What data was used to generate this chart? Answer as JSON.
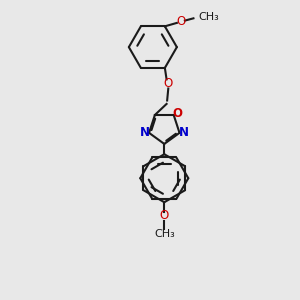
{
  "bg_color": "#e8e8e8",
  "bond_color": "#1a1a1a",
  "oxygen_color": "#cc0000",
  "nitrogen_color": "#0000cc",
  "font_size": 8.5,
  "lw": 1.5,
  "xlim": [
    -0.5,
    1.8
  ],
  "ylim": [
    -2.6,
    2.6
  ]
}
